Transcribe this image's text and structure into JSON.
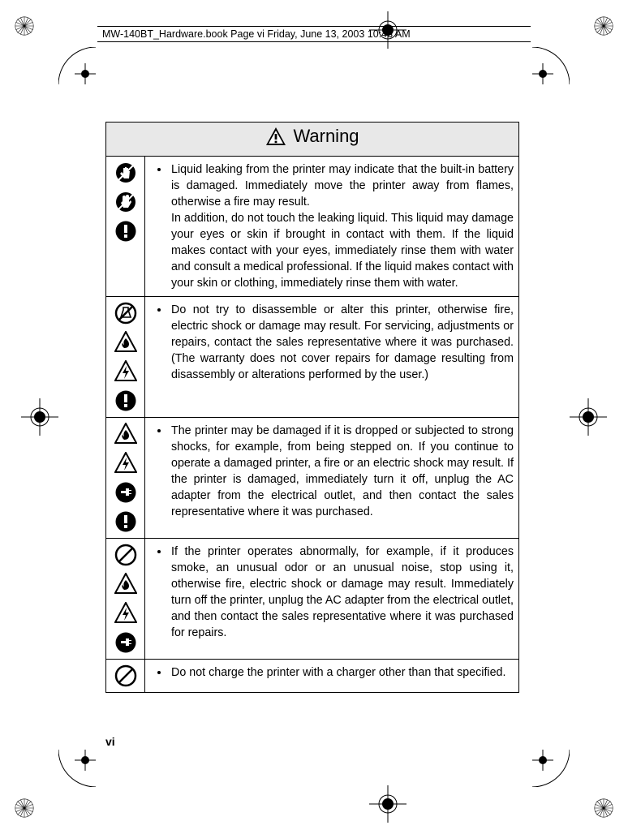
{
  "header_text": "MW-140BT_Hardware.book  Page vi  Friday, June 13, 2003  10:43 AM",
  "page_number": "vi",
  "warning_title": "Warning",
  "rows": [
    {
      "icons": [
        "no-touch-icon",
        "no-hand-icon",
        "mandatory-icon"
      ],
      "text": "Liquid leaking from the printer may indicate that the built-in battery is damaged. Immediately move the printer away from flames, otherwise a fire may result.\nIn addition, do not touch the leaking liquid. This liquid may damage your eyes or skin if brought in contact with them. If the liquid makes contact with your eyes, immediately rinse them with water and consult a medical professional. If the liquid makes contact with your skin or clothing, immediately rinse them with water."
    },
    {
      "icons": [
        "no-disassemble-icon",
        "fire-warning-icon",
        "shock-warning-icon",
        "mandatory-icon"
      ],
      "text": "Do not try to disassemble or alter this printer, otherwise fire, electric shock or damage may result. For servicing, adjustments or repairs, contact the sales representative where it was purchased. (The warranty does not cover repairs for damage resulting from disassembly or alterations performed by the user.)"
    },
    {
      "icons": [
        "fire-warning-icon",
        "shock-warning-icon",
        "unplug-icon",
        "mandatory-icon"
      ],
      "text": "The printer may be damaged if it is dropped or subjected to strong shocks, for example, from being stepped on. If you continue to operate a damaged printer, a fire or an electric shock may result. If the printer is damaged, immediately turn it off, unplug the AC adapter from the electrical outlet, and then contact the sales representative where it was purchased."
    },
    {
      "icons": [
        "prohibit-icon",
        "fire-warning-icon",
        "shock-warning-icon",
        "unplug-icon"
      ],
      "text": "If the printer operates abnormally, for example, if it produces smoke, an unusual odor or an unusual noise, stop using it, otherwise fire, electric shock or damage may result. Immediately turn off the printer, unplug the AC adapter from the electrical outlet, and then contact the sales representative where it was purchased for repairs."
    },
    {
      "icons": [
        "prohibit-icon"
      ],
      "text": "Do not charge the printer with a charger other than that specified."
    }
  ],
  "colors": {
    "header_bg": "#e8e8e8",
    "border": "#000000",
    "text": "#000000",
    "page_bg": "#ffffff"
  }
}
